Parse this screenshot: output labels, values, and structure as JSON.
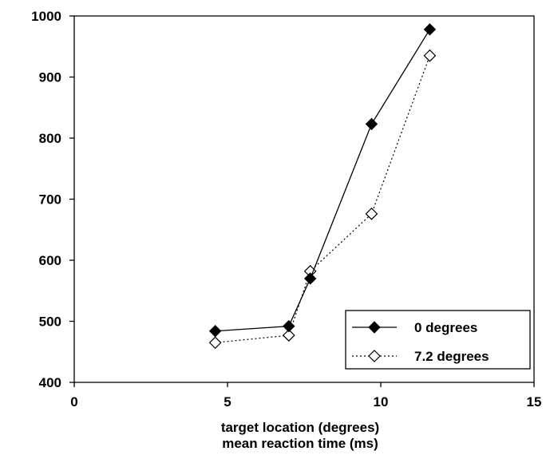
{
  "chart_data": {
    "type": "line",
    "xlabel": "target location (degrees)",
    "ylabel": "",
    "xlabel_line2": "mean reaction time (ms)",
    "xlim": [
      0,
      15
    ],
    "ylim": [
      400,
      1000
    ],
    "xticks": [
      0,
      5,
      10,
      15
    ],
    "yticks": [
      400,
      500,
      600,
      700,
      800,
      900,
      1000
    ],
    "grid": false,
    "legend_position": "bottom-right",
    "series": [
      {
        "name": "0 degrees",
        "marker": "filled-diamond",
        "line": "solid",
        "color": "#000000",
        "x": [
          4.6,
          7.0,
          7.7,
          9.7,
          11.6
        ],
        "y": [
          484,
          492,
          570,
          823,
          978
        ]
      },
      {
        "name": "7.2 degrees",
        "marker": "open-diamond",
        "line": "dotted",
        "color": "#000000",
        "x": [
          4.6,
          7.0,
          7.7,
          9.7,
          11.6
        ],
        "y": [
          465,
          477,
          582,
          676,
          935
        ]
      }
    ]
  }
}
